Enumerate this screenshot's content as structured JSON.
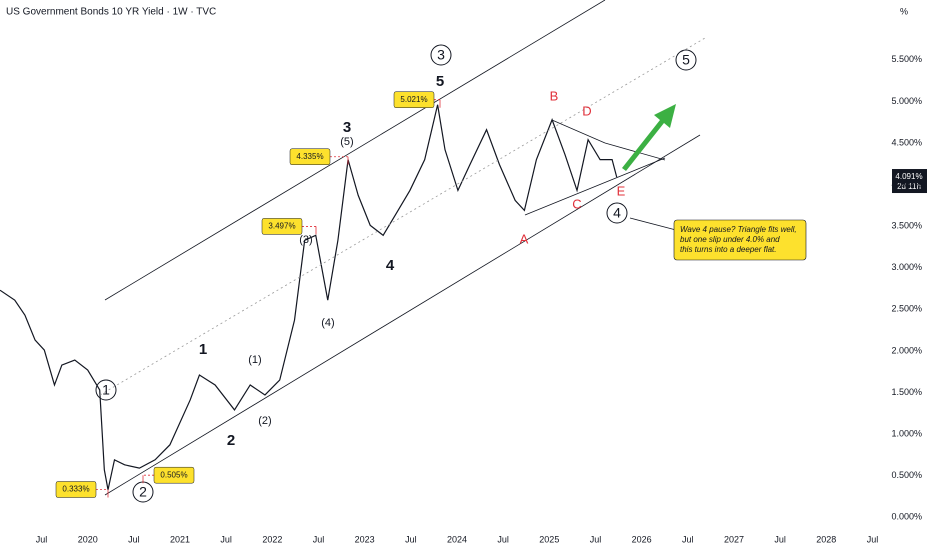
{
  "chart_data": {
    "type": "line",
    "title": "US Government Bonds 10 YR Yield · 1W · TVC",
    "unit_label": "%",
    "x": [
      2019.05,
      2019.21,
      2019.32,
      2019.43,
      2019.53,
      2019.64,
      2019.72,
      2019.86,
      2020.0,
      2020.13,
      2020.18,
      2020.22,
      2020.29,
      2020.4,
      2020.56,
      2020.73,
      2020.89,
      2021.11,
      2021.21,
      2021.38,
      2021.59,
      2021.76,
      2021.92,
      2022.08,
      2022.24,
      2022.35,
      2022.47,
      2022.6,
      2022.71,
      2022.82,
      2022.93,
      2023.06,
      2023.2,
      2023.33,
      2023.49,
      2023.65,
      2023.79,
      2023.87,
      2024.01,
      2024.14,
      2024.32,
      2024.46,
      2024.63,
      2024.73,
      2024.86,
      2025.03,
      2025.17,
      2025.3,
      2025.42,
      2025.55,
      2025.68,
      2025.73
    ],
    "series": [
      {
        "color": "#131722",
        "values": [
          2.73,
          2.61,
          2.43,
          2.13,
          2.01,
          1.59,
          1.83,
          1.89,
          1.77,
          1.53,
          0.57,
          0.33,
          0.69,
          0.63,
          0.59,
          0.69,
          0.87,
          1.41,
          1.71,
          1.59,
          1.29,
          1.59,
          1.47,
          1.65,
          2.37,
          3.33,
          3.39,
          2.61,
          3.33,
          4.3,
          3.87,
          3.51,
          3.39,
          3.63,
          3.93,
          4.3,
          4.96,
          4.42,
          3.93,
          4.24,
          4.66,
          4.24,
          3.81,
          3.69,
          4.3,
          4.78,
          4.36,
          3.93,
          4.54,
          4.3,
          4.3,
          4.09
        ]
      }
    ],
    "xlim": [
      2019.05,
      2028.69
    ],
    "xticks": [
      {
        "value": 2019.5,
        "label": "Jul"
      },
      2020,
      {
        "value": 2020.5,
        "label": "Jul"
      },
      2021,
      {
        "value": 2021.5,
        "label": "Jul"
      },
      2022,
      {
        "value": 2022.5,
        "label": "Jul"
      },
      2023,
      {
        "value": 2023.5,
        "label": "Jul"
      },
      2024,
      {
        "value": 2024.5,
        "label": "Jul"
      },
      2025,
      {
        "value": 2025.5,
        "label": "Jul"
      },
      2026,
      {
        "value": 2026.5,
        "label": "Jul"
      },
      2027,
      {
        "value": 2027.5,
        "label": "Jul"
      },
      2028,
      {
        "value": 2028.5,
        "label": "Jul"
      }
    ],
    "ylim": [
      -0.13,
      6.22
    ],
    "yticks": [
      {
        "value": 0,
        "label": "0.000%"
      },
      {
        "value": 0.5,
        "label": "0.500%"
      },
      {
        "value": 1,
        "label": "1.000%"
      },
      {
        "value": 1.5,
        "label": "1.500%"
      },
      {
        "value": 2,
        "label": "2.000%"
      },
      {
        "value": 2.5,
        "label": "2.500%"
      },
      {
        "value": 3,
        "label": "3.000%"
      },
      {
        "value": 3.5,
        "label": "3.500%"
      },
      {
        "value": 4,
        "label": "4.000%"
      },
      {
        "value": 4.5,
        "label": "4.500%"
      },
      {
        "value": 5,
        "label": "5.000%"
      },
      {
        "value": 5.5,
        "label": "5.500%"
      }
    ],
    "grid": false,
    "callouts": [
      {
        "value": 5.021,
        "label": "5.021%"
      },
      {
        "value": 4.335,
        "label": "4.335%"
      },
      {
        "value": 3.497,
        "label": "3.497%"
      },
      {
        "value": 0.505,
        "label": "0.505%"
      },
      {
        "value": 0.333,
        "label": "0.333%"
      }
    ],
    "last_price": {
      "value": 4.091,
      "label": "4.091%"
    },
    "countdown": "2d 11h",
    "labels": [
      "1",
      "2",
      "3",
      "4",
      "5",
      "1",
      "2",
      "3",
      "4",
      "5",
      "(1)",
      "(2)",
      "(3)",
      "(4)",
      "(5)",
      "A",
      "B",
      "C",
      "D",
      "E"
    ],
    "note": [
      "Wave 4 pause? Triangle fits well,",
      "but one slip under 4.0% and",
      "this turns into a deeper flat."
    ]
  }
}
